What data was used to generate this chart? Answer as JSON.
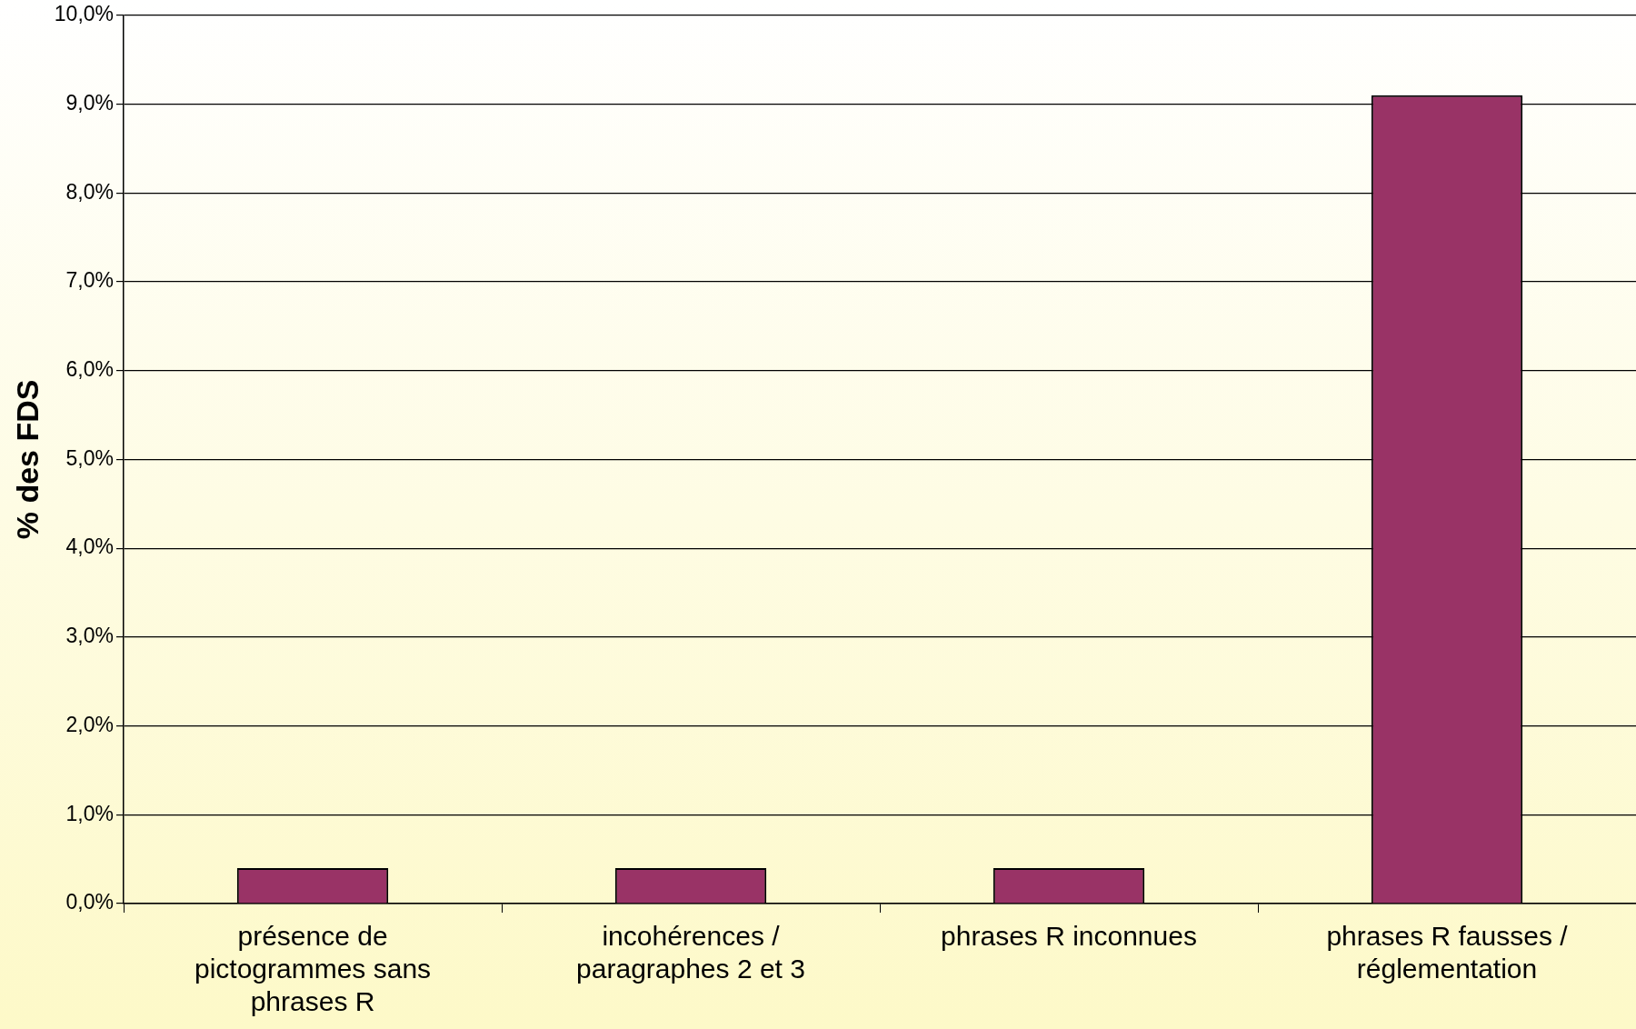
{
  "chart_data": {
    "type": "bar",
    "ylabel": "% des FDS",
    "categories": [
      "présence de pictogrammes sans phrases R",
      "incohérences / paragraphes 2 et 3",
      "phrases R inconnues",
      "phrases R fausses / réglementation"
    ],
    "values": [
      0.4,
      0.4,
      0.4,
      9.1
    ],
    "color": "#993366",
    "ylim": [
      0,
      10
    ],
    "yticks": [
      {
        "value": 0,
        "label": "0,0%"
      },
      {
        "value": 1,
        "label": "1,0%"
      },
      {
        "value": 2,
        "label": "2,0%"
      },
      {
        "value": 3,
        "label": "3,0%"
      },
      {
        "value": 4,
        "label": "4,0%"
      },
      {
        "value": 5,
        "label": "5,0%"
      },
      {
        "value": 6,
        "label": "6,0%"
      },
      {
        "value": 7,
        "label": "7,0%"
      },
      {
        "value": 8,
        "label": "8,0%"
      },
      {
        "value": 9,
        "label": "9,0%"
      },
      {
        "value": 10,
        "label": "10,0%"
      }
    ],
    "grid": "y",
    "legend": false
  }
}
